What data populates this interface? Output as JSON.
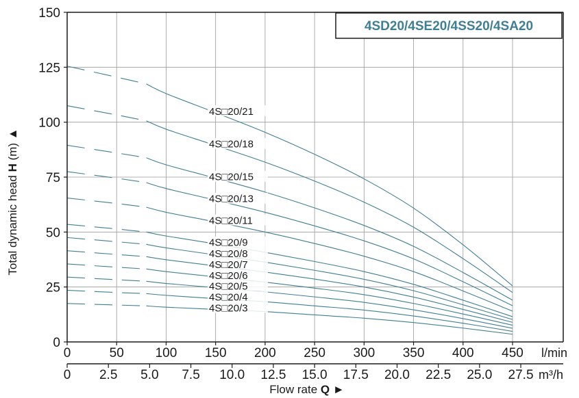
{
  "chart_data": {
    "type": "line",
    "title": "4SD20/4SE20/4SS20/4SA20",
    "title_color": "#3f7f95",
    "curve_color": "#3f7f95",
    "xlabel": "Flow rate",
    "xlabel_bold": "Q",
    "xlabel_arrow": "►",
    "ylabel": "Total dynamic head",
    "ylabel_bold": "H",
    "ylabel_unit": "(m)",
    "ylabel_arrow": "▲",
    "x_unit": "l/min",
    "x2_unit": "m³/h",
    "xlim": [
      0,
      450
    ],
    "ylim": [
      0,
      150
    ],
    "grid": true,
    "xticks": [
      "0",
      "50",
      "100",
      "150",
      "200",
      "250",
      "300",
      "350",
      "400",
      "450"
    ],
    "x2ticks": [
      "0",
      "2.5",
      "5.0",
      "7.5",
      "10.0",
      "12.5",
      "15.0",
      "17.5",
      "20.0",
      "22.5",
      "25.0",
      "27.5"
    ],
    "yticks": [
      "0",
      "25",
      "50",
      "75",
      "100",
      "125",
      "150"
    ],
    "x": [
      0,
      50,
      80,
      100,
      150,
      200,
      250,
      300,
      350,
      400,
      450
    ],
    "series": [
      {
        "name": "4S□20/3",
        "values": [
          17.5,
          16.8,
          16.4,
          15.8,
          14.8,
          13.8,
          12.3,
          10.8,
          8.8,
          6.3,
          3.5
        ]
      },
      {
        "name": "4S□20/4",
        "values": [
          23.5,
          22.5,
          22.0,
          21.2,
          19.7,
          18.3,
          16.4,
          14.5,
          11.8,
          8.5,
          4.8
        ]
      },
      {
        "name": "4S□20/5",
        "values": [
          29.5,
          28.3,
          27.6,
          26.6,
          24.7,
          22.8,
          20.5,
          18.0,
          14.6,
          10.6,
          6.2
        ]
      },
      {
        "name": "4S□20/6",
        "values": [
          35.5,
          34.0,
          33.2,
          32.0,
          29.6,
          27.2,
          24.5,
          21.5,
          17.5,
          12.7,
          7.6
        ]
      },
      {
        "name": "4S□20/7",
        "values": [
          41.5,
          39.8,
          38.8,
          37.4,
          34.6,
          31.8,
          28.6,
          25.0,
          20.4,
          14.8,
          8.9
        ]
      },
      {
        "name": "4S□20/8",
        "values": [
          47.5,
          45.6,
          44.4,
          42.8,
          39.6,
          36.3,
          32.6,
          28.5,
          23.3,
          16.9,
          10.2
        ]
      },
      {
        "name": "4S□20/9",
        "values": [
          53.5,
          51.4,
          50.0,
          48.2,
          44.6,
          40.8,
          36.6,
          32.0,
          26.2,
          19.0,
          11.5
        ]
      },
      {
        "name": "4S□20/11",
        "values": [
          65.5,
          63.0,
          61.3,
          59.0,
          54.6,
          50.0,
          44.8,
          39.0,
          32.0,
          23.2,
          14.0
        ]
      },
      {
        "name": "4S□20/13",
        "values": [
          77.5,
          74.5,
          72.5,
          69.8,
          64.5,
          59.0,
          52.8,
          46.0,
          37.8,
          27.4,
          16.5
        ]
      },
      {
        "name": "4S□20/15",
        "values": [
          89.5,
          86.0,
          83.8,
          80.6,
          74.5,
          68.2,
          61.0,
          53.0,
          43.5,
          31.6,
          19.0
        ]
      },
      {
        "name": "4S□20/18",
        "values": [
          107.5,
          103.3,
          100.6,
          96.8,
          89.4,
          81.8,
          73.2,
          63.6,
          52.2,
          37.9,
          22.5
        ]
      },
      {
        "name": "4S□20/21",
        "values": [
          125.5,
          120.5,
          117.4,
          113.0,
          104.3,
          95.4,
          85.4,
          74.2,
          60.9,
          44.2,
          25.5
        ]
      }
    ],
    "dashed_until_x": 80
  }
}
